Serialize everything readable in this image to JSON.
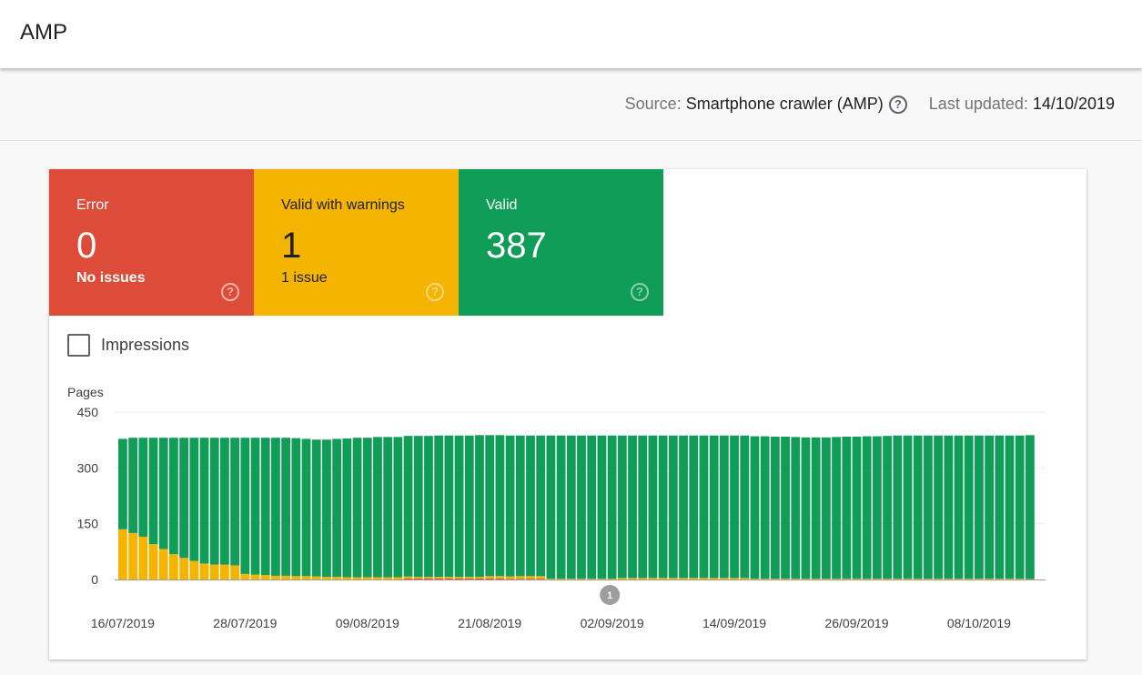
{
  "header": {
    "title": "AMP"
  },
  "info": {
    "source_label": "Source:",
    "source_value": "Smartphone crawler (AMP)",
    "updated_label": "Last updated:",
    "updated_value": "14/10/2019"
  },
  "tiles": [
    {
      "label": "Error",
      "count": "0",
      "sub": "No issues",
      "color": "#dd4b39"
    },
    {
      "label": "Valid with warnings",
      "count": "1",
      "sub": "1 issue",
      "color": "#f4b400"
    },
    {
      "label": "Valid",
      "count": "387",
      "sub": "",
      "color": "#0f9d58"
    }
  ],
  "impressions": {
    "label": "Impressions",
    "checked": false
  },
  "chart_data": {
    "type": "bar",
    "stacked": true,
    "ylabel": "Pages",
    "ylim": [
      0,
      450
    ],
    "yticks": [
      "450",
      "300",
      "150",
      "0"
    ],
    "x_start": "16/07/2019",
    "x_end": "13/10/2019",
    "x_tick_labels": [
      "16/07/2019",
      "28/07/2019",
      "09/08/2019",
      "21/08/2019",
      "02/09/2019",
      "14/09/2019",
      "26/09/2019",
      "08/10/2019"
    ],
    "annotation": {
      "label": "1",
      "date": "31/08/2019"
    },
    "grid": true,
    "series": [
      {
        "name": "Error",
        "color": "#dd4b39",
        "values": [
          0,
          0,
          0,
          0,
          0,
          0,
          0,
          0,
          0,
          0,
          0,
          0,
          0,
          0,
          0,
          0,
          0,
          0,
          0,
          0,
          0,
          0,
          0,
          0,
          0,
          0,
          0,
          0,
          3,
          3,
          3,
          3,
          3,
          3,
          3,
          3,
          3,
          3,
          2,
          2,
          2,
          2,
          0,
          0,
          0,
          0,
          0,
          0,
          0,
          0,
          0,
          0,
          0,
          0,
          0,
          0,
          0,
          0,
          0,
          0,
          0,
          0,
          0,
          0,
          0,
          0,
          0,
          0,
          0,
          0,
          0,
          0,
          0,
          0,
          0,
          0,
          0,
          0,
          0,
          0,
          0,
          0,
          0,
          0,
          0,
          0,
          0,
          0,
          0,
          0
        ]
      },
      {
        "name": "Valid with warnings",
        "color": "#f4b400",
        "values": [
          135,
          125,
          115,
          95,
          82,
          68,
          58,
          50,
          43,
          40,
          40,
          38,
          15,
          13,
          12,
          10,
          10,
          9,
          9,
          8,
          7,
          7,
          6,
          6,
          6,
          6,
          6,
          6,
          5,
          4,
          4,
          4,
          4,
          4,
          4,
          4,
          6,
          6,
          6,
          7,
          7,
          7,
          2,
          2,
          2,
          2,
          2,
          2,
          2,
          4,
          4,
          4,
          4,
          4,
          4,
          4,
          4,
          4,
          4,
          4,
          4,
          4,
          2,
          2,
          2,
          2,
          2,
          2,
          2,
          2,
          2,
          2,
          2,
          2,
          2,
          2,
          2,
          2,
          2,
          2,
          2,
          2,
          2,
          2,
          2,
          2,
          2,
          2,
          2,
          1
        ]
      },
      {
        "name": "Valid",
        "color": "#0f9d58",
        "values": [
          243,
          256,
          266,
          286,
          299,
          313,
          323,
          331,
          338,
          341,
          341,
          343,
          366,
          368,
          369,
          371,
          371,
          371,
          369,
          368,
          369,
          371,
          373,
          375,
          375,
          377,
          377,
          377,
          378,
          379,
          379,
          380,
          380,
          380,
          380,
          381,
          379,
          379,
          379,
          378,
          378,
          378,
          385,
          385,
          385,
          385,
          385,
          385,
          385,
          383,
          383,
          383,
          383,
          383,
          383,
          383,
          383,
          383,
          383,
          383,
          383,
          383,
          383,
          383,
          382,
          382,
          381,
          380,
          380,
          380,
          381,
          382,
          382,
          383,
          383,
          384,
          385,
          385,
          385,
          385,
          385,
          385,
          385,
          385,
          385,
          385,
          385,
          385,
          385,
          387
        ]
      }
    ]
  }
}
